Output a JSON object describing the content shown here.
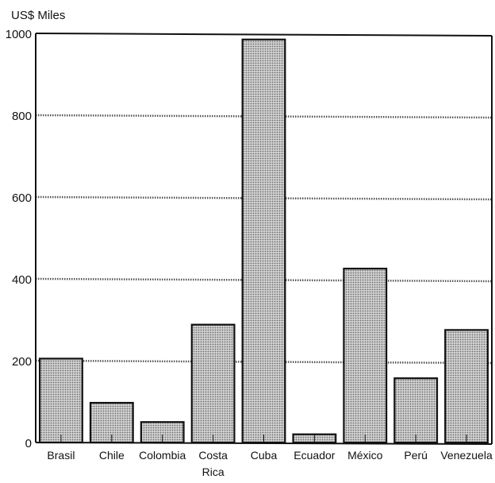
{
  "chart_data": {
    "type": "bar",
    "ylabel": "US$ Miles",
    "categories": [
      "Brasil",
      "Chile",
      "Colombia",
      "Costa Rica",
      "Cuba",
      "Ecuador",
      "México",
      "Perú",
      "Venezuela"
    ],
    "category_lines": [
      [
        "Brasil"
      ],
      [
        "Chile"
      ],
      [
        "Colombia"
      ],
      [
        "Costa",
        "Rica"
      ],
      [
        "Cuba"
      ],
      [
        "Ecuador"
      ],
      [
        "México"
      ],
      [
        "Perú"
      ],
      [
        "Venezuela"
      ]
    ],
    "values": [
      205,
      97,
      50,
      288,
      985,
      20,
      425,
      157,
      275
    ],
    "ylim": [
      0,
      1000
    ],
    "yticks": [
      0,
      200,
      400,
      600,
      800,
      1000
    ],
    "grid": true,
    "bar_fill": "#bdbdbd",
    "bar_stroke": "#111111"
  }
}
